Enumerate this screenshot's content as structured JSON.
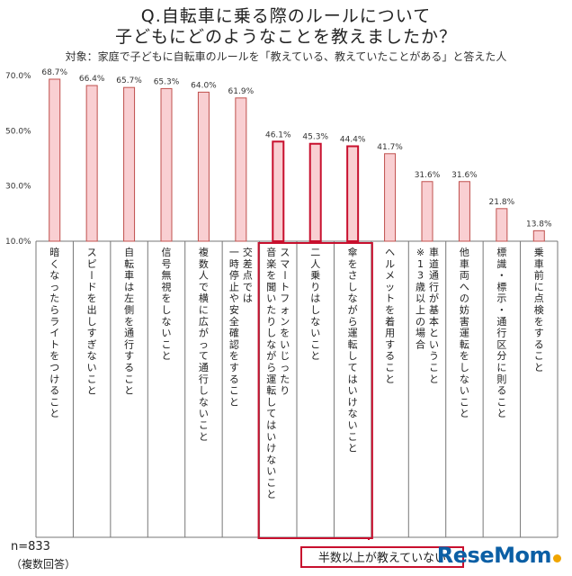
{
  "title_line1": "Q.自転車に乗る際のルールについて",
  "title_line2": "子どもにどのようなことを教えましたか？",
  "subtitle": "対象：家庭で子どもに自転車のルールを「教えている、教えていたことがある」と答えた人",
  "footer": {
    "n": "n=833",
    "note": "（複数回答）"
  },
  "callout": "半数以上が教えていない",
  "logo": "ReseMom",
  "colors": {
    "bar_fill": "#f9cfd2",
    "bar_stroke": "#c0504d",
    "highlight": "#c8102e"
  },
  "chart_data": {
    "type": "bar",
    "title": "Q.自転車に乗る際のルールについて 子どもにどのようなことを教えましたか？",
    "ylim": [
      10,
      70
    ],
    "yticks": [
      "70.0%",
      "50.0%",
      "30.0%",
      "10.0%"
    ],
    "ytick_values": [
      70,
      50,
      30,
      10
    ],
    "categories": [
      "暗くなったらライトをつけること",
      "スピードを出しすぎないこと",
      "自転車は左側を通行すること",
      "信号無視をしないこと",
      "複数人で横に広がって通行しないこと",
      "交差点では|一時停止や安全確認をすること",
      "スマートフォンをいじったり|音楽を聞いたりしながら運転してはいけないこと",
      "二人乗りはしないこと",
      "傘をさしながら運転してはいけないこと",
      "ヘルメットを着用すること",
      "車道通行が基本ということ|※13歳以上の場合",
      "他車両への妨害運転をしないこと",
      "標識・標示・通行区分に則ること",
      "乗車前に点検をすること"
    ],
    "values": [
      68.7,
      66.4,
      65.7,
      65.3,
      64.0,
      61.9,
      46.1,
      45.3,
      44.4,
      41.7,
      31.6,
      31.6,
      21.8,
      13.8
    ],
    "value_labels": [
      "68.7%",
      "66.4%",
      "65.7%",
      "65.3%",
      "64.0%",
      "61.9%",
      "46.1%",
      "45.3%",
      "44.4%",
      "41.7%",
      "31.6%",
      "31.6%",
      "21.8%",
      "13.8%"
    ],
    "highlighted": [
      6,
      7,
      8
    ]
  }
}
